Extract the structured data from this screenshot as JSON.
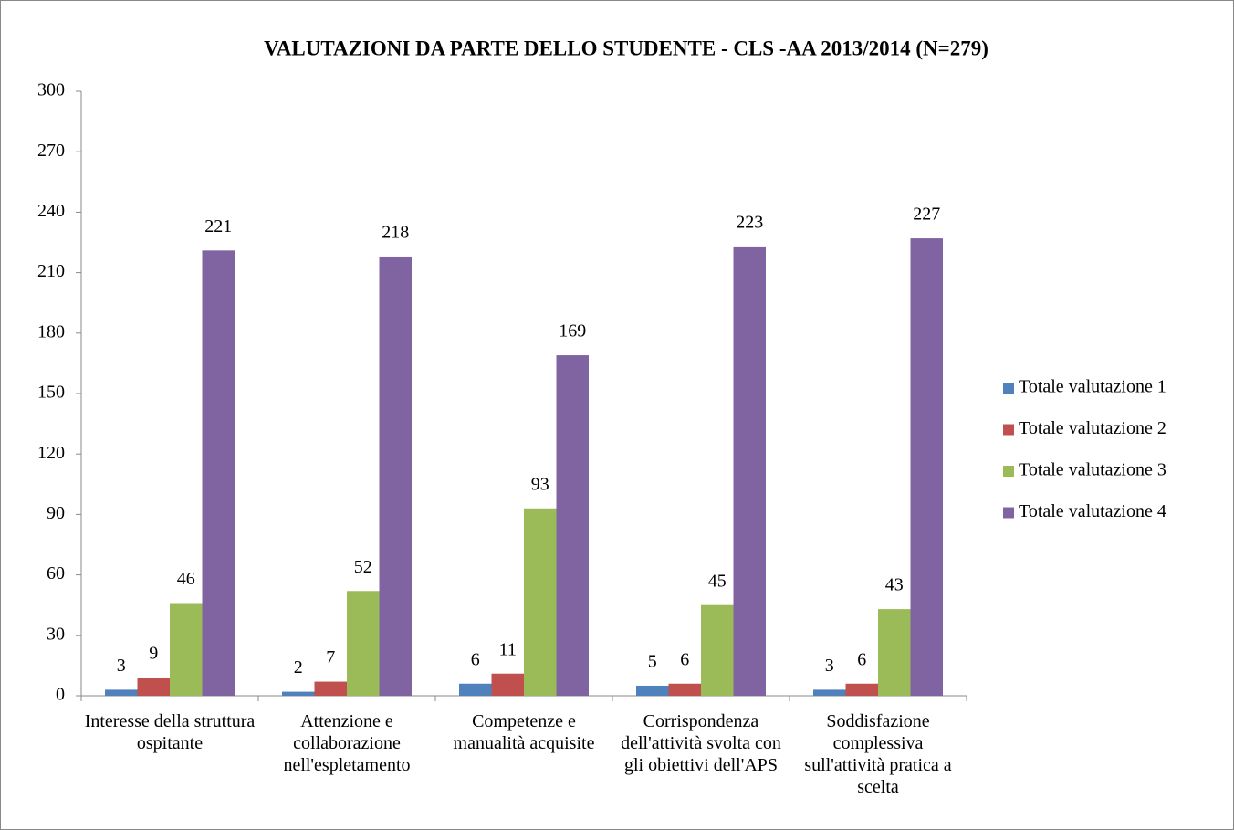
{
  "chart_data": {
    "type": "bar",
    "title": "VALUTAZIONI DA PARTE DELLO STUDENTE - CLS -AA 2013/2014 (N=279)",
    "categories": [
      "Interesse della struttura ospitante",
      "Attenzione e collaborazione nell'espletamento",
      "Competenze e manualità acquisite",
      "Corrispondenza dell'attività svolta con gli obiettivi dell'APS",
      "Soddisfazione complessiva sull'attività pratica a scelta"
    ],
    "series": [
      {
        "name": "Totale valutazione 1",
        "color": "#4f81bd",
        "values": [
          3,
          2,
          6,
          5,
          3
        ]
      },
      {
        "name": "Totale valutazione 2",
        "color": "#c0504d",
        "values": [
          9,
          7,
          11,
          6,
          6
        ]
      },
      {
        "name": "Totale valutazione 3",
        "color": "#9bbb59",
        "values": [
          46,
          52,
          93,
          45,
          43
        ]
      },
      {
        "name": "Totale valutazione 4",
        "color": "#8064a2",
        "values": [
          221,
          218,
          169,
          223,
          227
        ]
      }
    ],
    "ylim": [
      0,
      300
    ],
    "yticks": [
      0,
      30,
      60,
      90,
      120,
      150,
      180,
      210,
      240,
      270,
      300
    ],
    "legend": "right",
    "grid": false
  }
}
